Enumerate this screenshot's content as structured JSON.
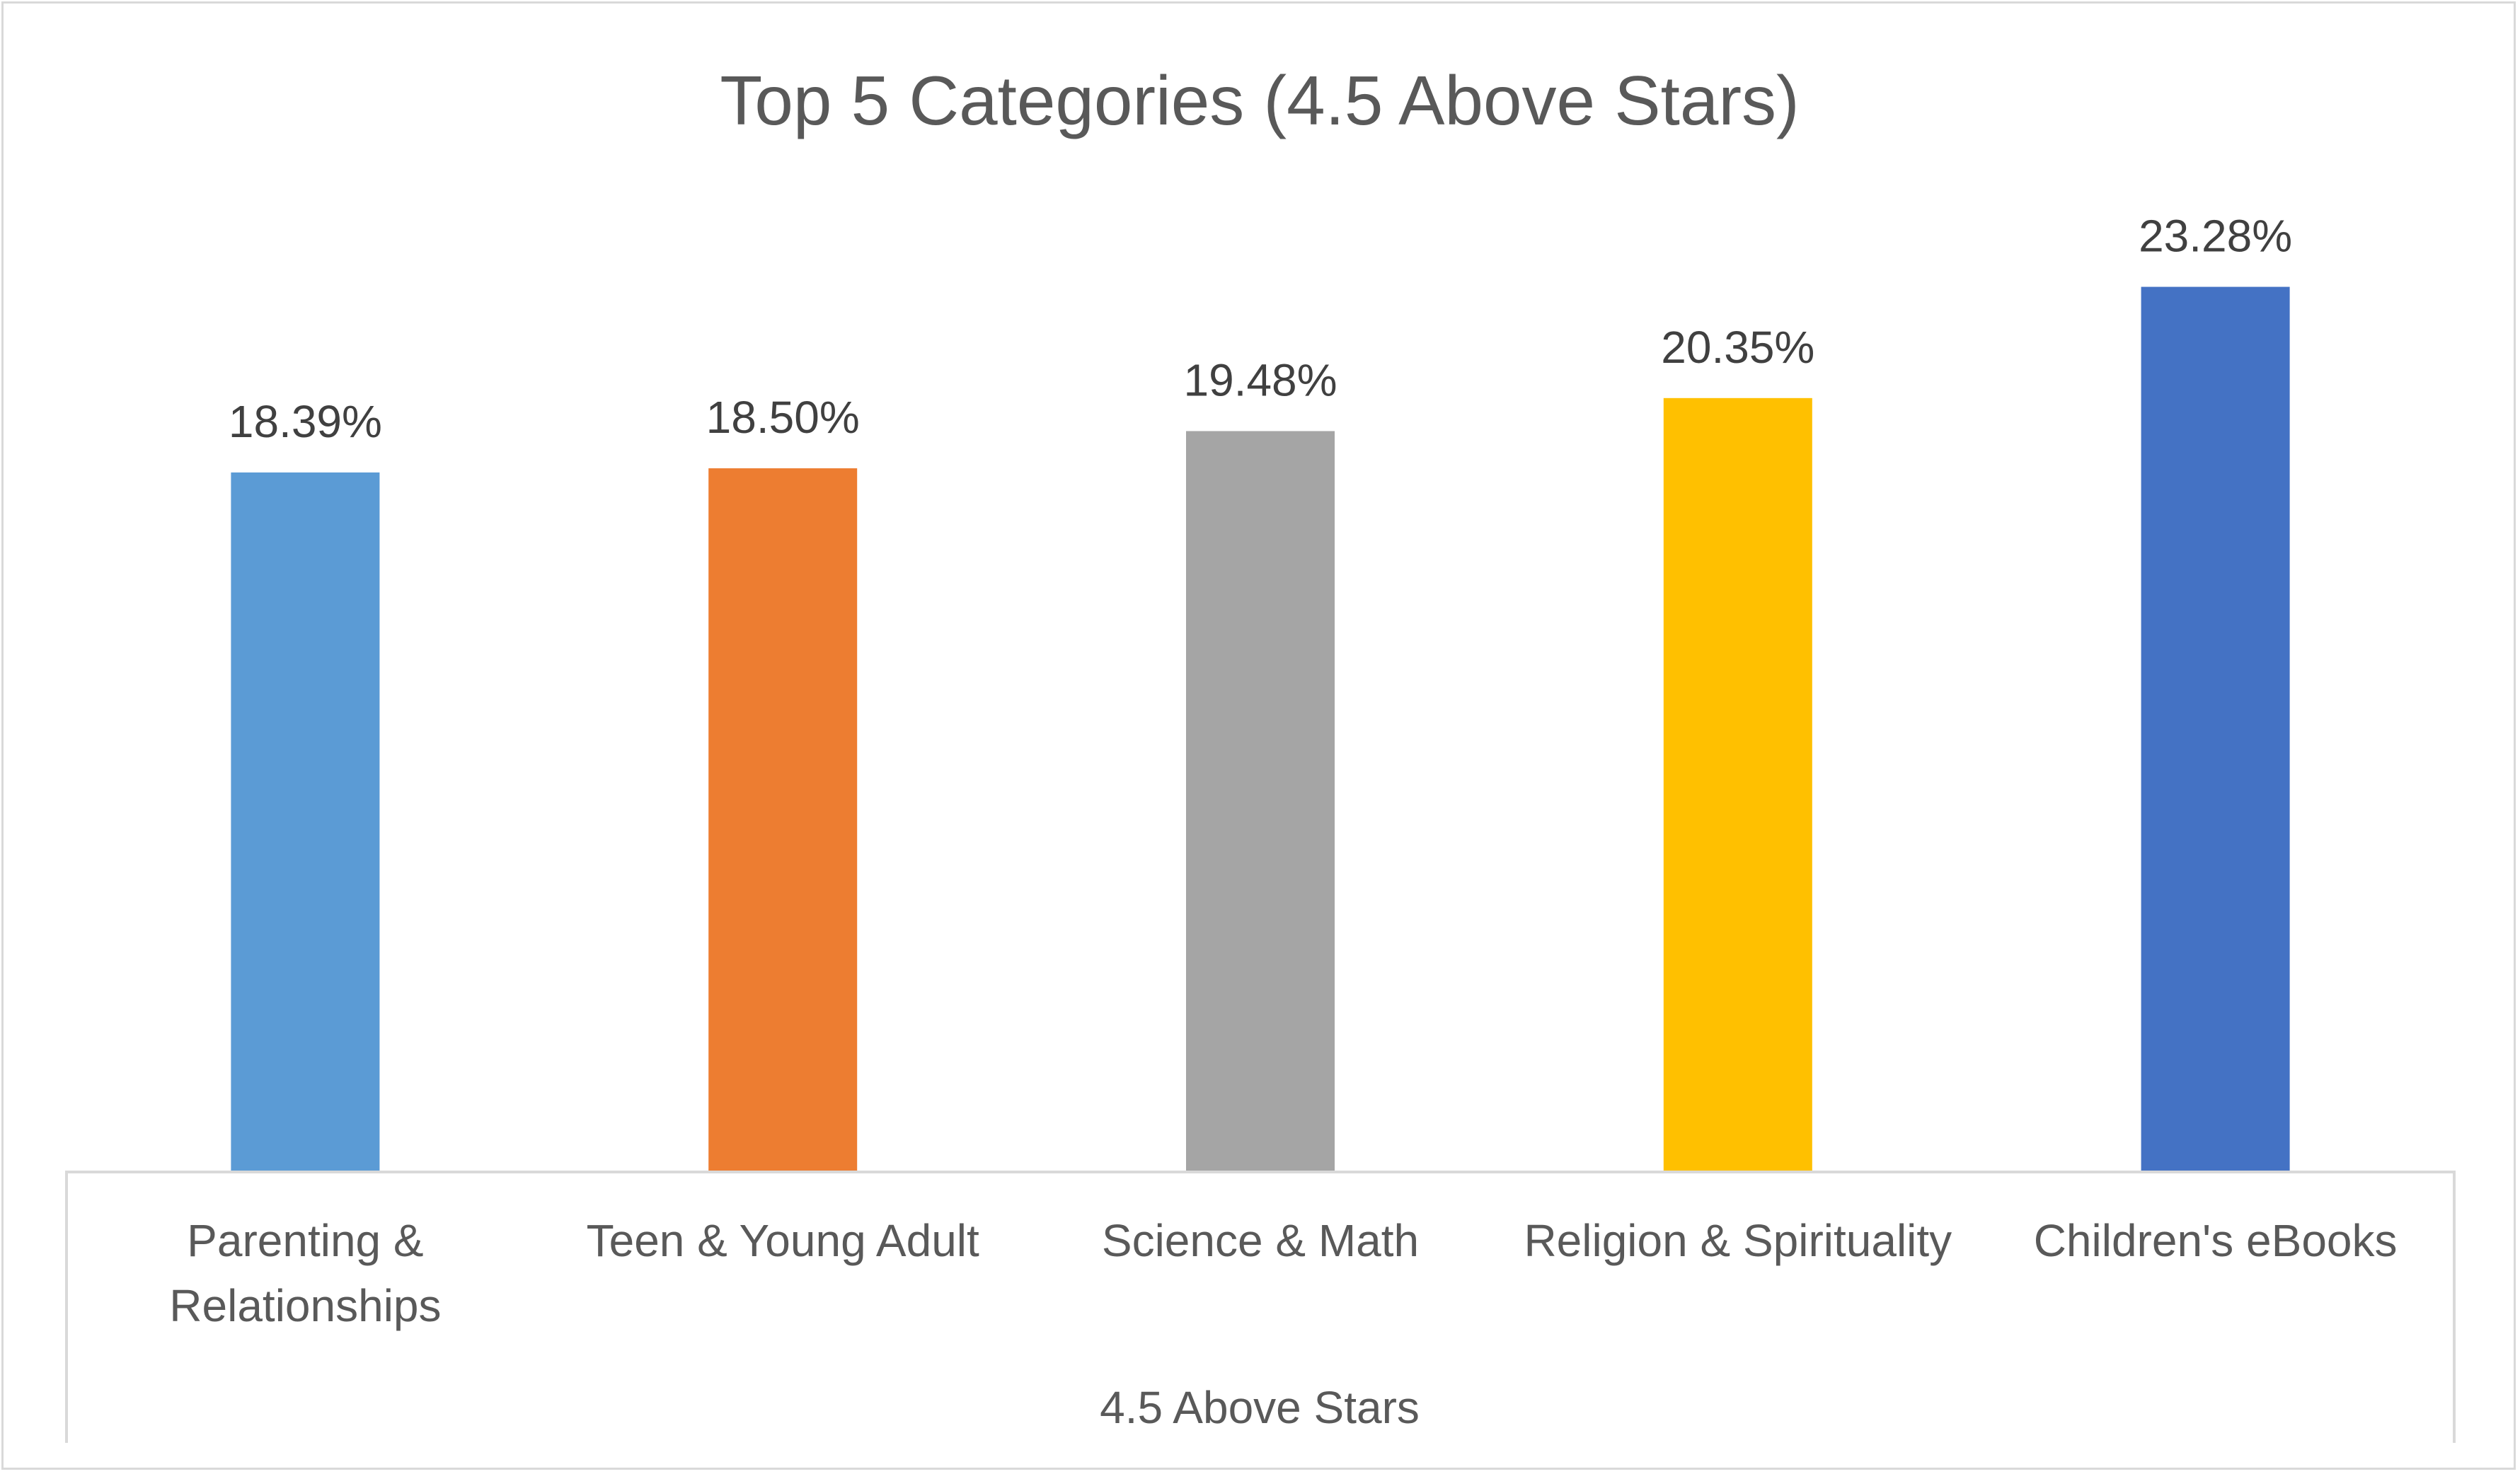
{
  "chart_data": {
    "type": "bar",
    "title": "Top 5 Categories (4.5 Above Stars)",
    "xlabel": "4.5 Above Stars",
    "ylabel": "",
    "categories": [
      [
        "Parenting &",
        "Relationships"
      ],
      [
        "Teen & Young Adult"
      ],
      [
        "Science & Math"
      ],
      [
        "Religion & Spirituality"
      ],
      [
        "Children's eBooks"
      ]
    ],
    "values": [
      18.39,
      18.5,
      19.48,
      20.35,
      23.28
    ],
    "data_labels": [
      "18.39%",
      "18.50%",
      "19.48%",
      "20.35%",
      "23.28%"
    ],
    "colors": [
      "#5b9bd5",
      "#ed7d31",
      "#a5a5a5",
      "#ffc000",
      "#4472c4"
    ],
    "ylim": [
      0,
      25
    ],
    "grid": false,
    "legend": "none"
  }
}
